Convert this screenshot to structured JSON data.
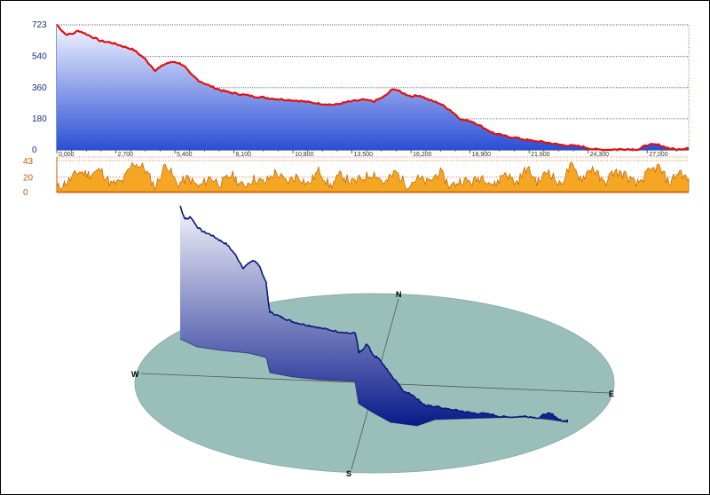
{
  "chart_data": [
    {
      "type": "area",
      "yticks": [
        0,
        180,
        360,
        540,
        723
      ],
      "xticks": [
        "0,000",
        "2,700",
        "5,400",
        "8,100",
        "10,800",
        "13,500",
        "16,200",
        "18,900",
        "21,600",
        "24,300",
        "27,000"
      ],
      "xlim": [
        0,
        28900
      ],
      "ylim": [
        0,
        723
      ],
      "grid": true,
      "colors": {
        "line": "#e01010",
        "fill_top": "#f4f6ff",
        "fill_bottom": "#2b4fd6",
        "grid": "#1a2a8a"
      },
      "x": [
        0,
        400,
        700,
        1000,
        1500,
        2000,
        2500,
        3000,
        3500,
        4000,
        4500,
        5000,
        5400,
        5800,
        6100,
        6500,
        7000,
        7500,
        8000,
        9000,
        10000,
        11000,
        12000,
        12700,
        13200,
        14000,
        14500,
        15000,
        15400,
        15800,
        16200,
        16600,
        17000,
        17500,
        18000,
        18500,
        19000,
        19500,
        20000,
        20500,
        21000,
        21600,
        22300,
        23000,
        24000,
        24500,
        25000,
        25600,
        26000,
        26600,
        27000,
        27500,
        28000,
        28400,
        28900
      ],
      "values": [
        723,
        668,
        670,
        690,
        660,
        630,
        620,
        600,
        580,
        530,
        460,
        500,
        510,
        490,
        440,
        400,
        370,
        345,
        330,
        310,
        295,
        285,
        268,
        260,
        275,
        290,
        280,
        310,
        355,
        330,
        310,
        315,
        290,
        270,
        230,
        175,
        165,
        130,
        95,
        80,
        70,
        55,
        45,
        30,
        20,
        5,
        0,
        3,
        5,
        2,
        30,
        30,
        10,
        0,
        15
      ]
    },
    {
      "type": "area",
      "yticks": [
        0,
        20,
        43
      ],
      "ylim": [
        0,
        43
      ],
      "colors": {
        "fill": "#f5a623",
        "stroke": "#c06000",
        "grid": "#c85a00"
      },
      "x": [
        0,
        500,
        1000,
        1500,
        2000,
        2500,
        3000,
        3500,
        4000,
        4500,
        5000,
        5500,
        6000,
        6500,
        7000,
        7500,
        8000,
        8500,
        9000,
        9500,
        10000,
        10500,
        11000,
        11500,
        12000,
        12500,
        13000,
        13500,
        14000,
        14500,
        15000,
        15500,
        16000,
        16500,
        17000,
        17500,
        18000,
        18500,
        19000,
        19500,
        20000,
        20500,
        21000,
        21500,
        22000,
        22500,
        23000,
        23500,
        24000,
        24500,
        25000,
        25500,
        26000,
        26500,
        27000,
        27500,
        28000,
        28500,
        28900
      ],
      "values": [
        5,
        14,
        28,
        24,
        30,
        10,
        14,
        40,
        33,
        6,
        40,
        10,
        19,
        6,
        20,
        11,
        24,
        7,
        18,
        12,
        27,
        13,
        22,
        10,
        30,
        7,
        24,
        12,
        19,
        26,
        11,
        28,
        9,
        18,
        12,
        28,
        7,
        16,
        13,
        22,
        8,
        27,
        11,
        33,
        13,
        30,
        8,
        36,
        18,
        34,
        11,
        28,
        23,
        9,
        25,
        35,
        12,
        29,
        14
      ]
    },
    {
      "type": "line",
      "view": "3d-terrain-profile",
      "compass": [
        "N",
        "E",
        "S",
        "W"
      ],
      "colors": {
        "disc": "#9abfbb",
        "curtain_top": "#f4f4fb",
        "curtain_bottom": "#0a1a8a",
        "track": "#0b1a7a"
      }
    }
  ]
}
